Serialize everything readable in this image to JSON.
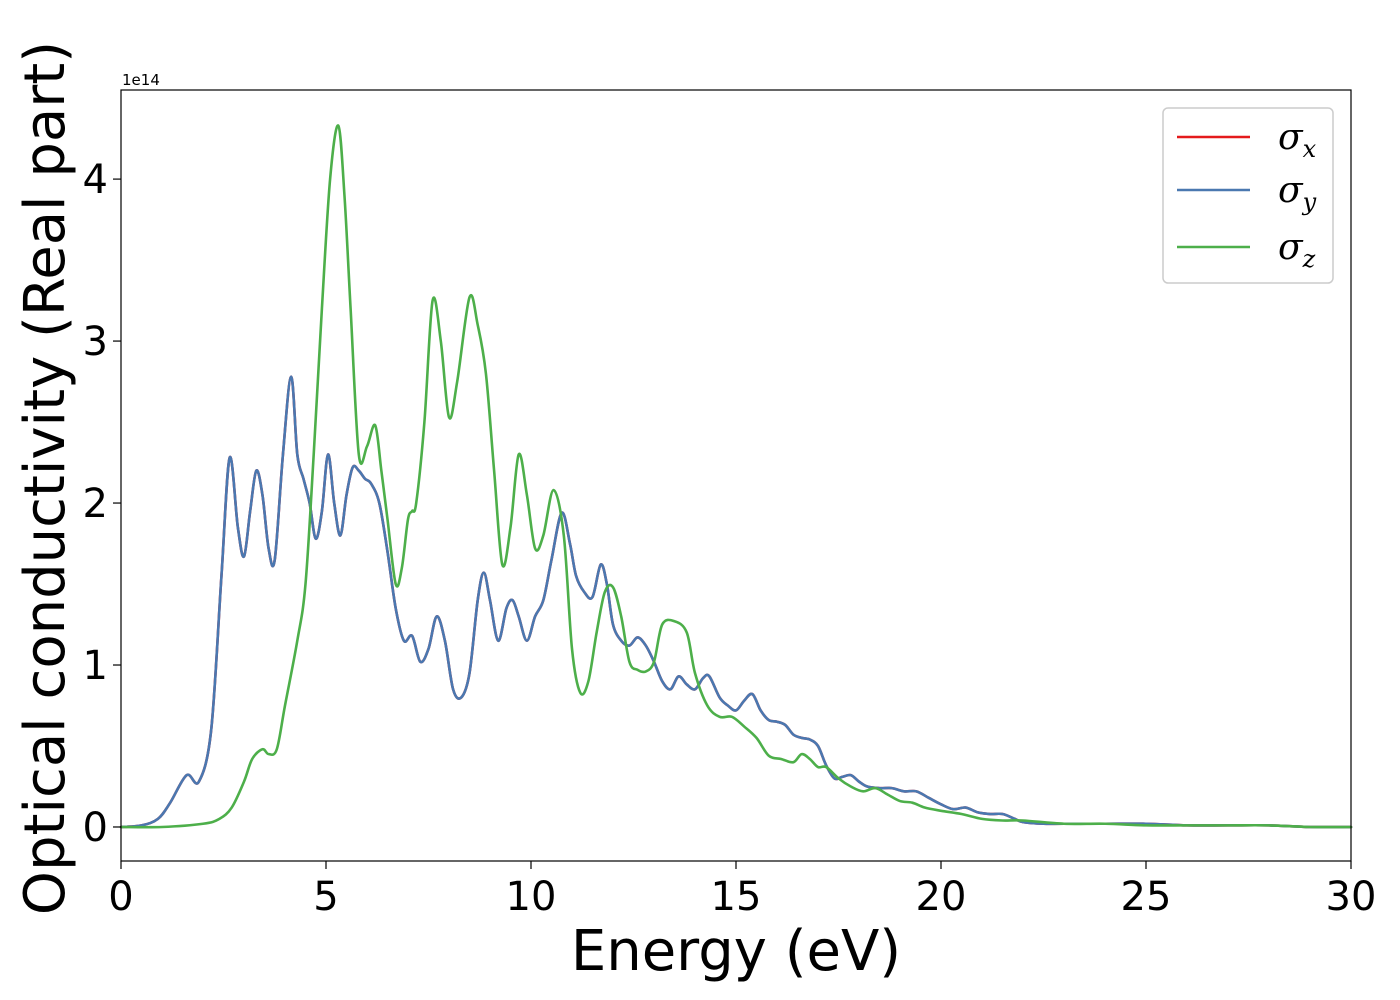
{
  "chart_data": {
    "type": "line",
    "xlabel": "Energy (eV)",
    "ylabel": "Optical conductivity (Real part)",
    "y_offset_text": "1e14",
    "xlim": [
      0,
      30
    ],
    "ylim": [
      -0.21,
      4.55
    ],
    "x_ticks": [
      0,
      5,
      10,
      15,
      20,
      25,
      30
    ],
    "x_tick_labels": [
      "0",
      "5",
      "10",
      "15",
      "20",
      "25",
      "30"
    ],
    "y_ticks": [
      0,
      1,
      2,
      3,
      4
    ],
    "y_tick_labels": [
      "0",
      "1",
      "2",
      "3",
      "4"
    ],
    "grid": false,
    "legend_position": "upper right",
    "series": [
      {
        "name": "σ_x",
        "legend_symbol": "σ",
        "legend_subscript": "x",
        "color": "#e41a1c",
        "x": [
          0,
          0.5,
          0.9,
          1.2,
          1.6,
          1.9,
          2.2,
          2.45,
          2.65,
          2.85,
          3.0,
          3.15,
          3.3,
          3.45,
          3.6,
          3.75,
          3.95,
          4.15,
          4.3,
          4.45,
          4.6,
          4.75,
          4.9,
          5.05,
          5.2,
          5.35,
          5.5,
          5.65,
          5.8,
          5.95,
          6.1,
          6.3,
          6.5,
          6.7,
          6.9,
          7.1,
          7.3,
          7.5,
          7.7,
          7.9,
          8.1,
          8.3,
          8.5,
          8.7,
          8.85,
          9.0,
          9.2,
          9.4,
          9.55,
          9.7,
          9.9,
          10.1,
          10.3,
          10.5,
          10.75,
          10.95,
          11.1,
          11.3,
          11.5,
          11.7,
          11.85,
          12.0,
          12.2,
          12.4,
          12.6,
          12.8,
          13.0,
          13.2,
          13.4,
          13.6,
          13.8,
          14.0,
          14.2,
          14.35,
          14.6,
          14.8,
          15.0,
          15.2,
          15.4,
          15.6,
          15.8,
          16.0,
          16.2,
          16.4,
          16.6,
          16.8,
          17.0,
          17.2,
          17.4,
          17.6,
          17.8,
          18.0,
          18.2,
          18.5,
          18.8,
          19.1,
          19.4,
          19.7,
          20.0,
          20.3,
          20.6,
          20.9,
          21.2,
          21.5,
          21.8,
          22.0,
          22.5,
          23.0,
          24.0,
          25.0,
          26.0,
          27.0,
          28.0,
          29.0,
          30.0
        ],
        "y": [
          0.0,
          0.01,
          0.05,
          0.15,
          0.32,
          0.28,
          0.6,
          1.55,
          2.28,
          1.85,
          1.67,
          1.95,
          2.2,
          2.05,
          1.72,
          1.65,
          2.3,
          2.78,
          2.3,
          2.15,
          2.0,
          1.78,
          1.95,
          2.3,
          2.0,
          1.8,
          2.05,
          2.22,
          2.2,
          2.15,
          2.12,
          2.0,
          1.7,
          1.35,
          1.15,
          1.18,
          1.02,
          1.1,
          1.3,
          1.15,
          0.85,
          0.8,
          0.95,
          1.4,
          1.57,
          1.4,
          1.15,
          1.35,
          1.4,
          1.3,
          1.15,
          1.3,
          1.4,
          1.65,
          1.94,
          1.75,
          1.55,
          1.45,
          1.42,
          1.62,
          1.5,
          1.25,
          1.15,
          1.12,
          1.17,
          1.12,
          1.02,
          0.9,
          0.85,
          0.93,
          0.88,
          0.85,
          0.92,
          0.93,
          0.8,
          0.75,
          0.72,
          0.78,
          0.82,
          0.72,
          0.66,
          0.65,
          0.63,
          0.57,
          0.55,
          0.54,
          0.5,
          0.38,
          0.3,
          0.31,
          0.32,
          0.28,
          0.25,
          0.24,
          0.24,
          0.22,
          0.22,
          0.18,
          0.14,
          0.11,
          0.12,
          0.09,
          0.08,
          0.08,
          0.05,
          0.03,
          0.02,
          0.02,
          0.02,
          0.02,
          0.01,
          0.01,
          0.01,
          0.0,
          0.0
        ]
      },
      {
        "name": "σ_y",
        "legend_symbol": "σ",
        "legend_subscript": "y",
        "color": "#4a78b0",
        "x": [
          0,
          0.5,
          0.9,
          1.2,
          1.6,
          1.9,
          2.2,
          2.45,
          2.65,
          2.85,
          3.0,
          3.15,
          3.3,
          3.45,
          3.6,
          3.75,
          3.95,
          4.15,
          4.3,
          4.45,
          4.6,
          4.75,
          4.9,
          5.05,
          5.2,
          5.35,
          5.5,
          5.65,
          5.8,
          5.95,
          6.1,
          6.3,
          6.5,
          6.7,
          6.9,
          7.1,
          7.3,
          7.5,
          7.7,
          7.9,
          8.1,
          8.3,
          8.5,
          8.7,
          8.85,
          9.0,
          9.2,
          9.4,
          9.55,
          9.7,
          9.9,
          10.1,
          10.3,
          10.5,
          10.75,
          10.95,
          11.1,
          11.3,
          11.5,
          11.7,
          11.85,
          12.0,
          12.2,
          12.4,
          12.6,
          12.8,
          13.0,
          13.2,
          13.4,
          13.6,
          13.8,
          14.0,
          14.2,
          14.35,
          14.6,
          14.8,
          15.0,
          15.2,
          15.4,
          15.6,
          15.8,
          16.0,
          16.2,
          16.4,
          16.6,
          16.8,
          17.0,
          17.2,
          17.4,
          17.6,
          17.8,
          18.0,
          18.2,
          18.5,
          18.8,
          19.1,
          19.4,
          19.7,
          20.0,
          20.3,
          20.6,
          20.9,
          21.2,
          21.5,
          21.8,
          22.0,
          22.5,
          23.0,
          24.0,
          25.0,
          26.0,
          27.0,
          28.0,
          29.0,
          30.0
        ],
        "y": [
          0.0,
          0.01,
          0.05,
          0.15,
          0.32,
          0.28,
          0.6,
          1.55,
          2.28,
          1.85,
          1.67,
          1.95,
          2.2,
          2.05,
          1.72,
          1.65,
          2.3,
          2.78,
          2.3,
          2.15,
          2.0,
          1.78,
          1.95,
          2.3,
          2.0,
          1.8,
          2.05,
          2.22,
          2.2,
          2.15,
          2.12,
          2.0,
          1.7,
          1.35,
          1.15,
          1.18,
          1.02,
          1.1,
          1.3,
          1.15,
          0.85,
          0.8,
          0.95,
          1.4,
          1.57,
          1.4,
          1.15,
          1.35,
          1.4,
          1.3,
          1.15,
          1.3,
          1.4,
          1.65,
          1.94,
          1.75,
          1.55,
          1.45,
          1.42,
          1.62,
          1.5,
          1.25,
          1.15,
          1.12,
          1.17,
          1.12,
          1.02,
          0.9,
          0.85,
          0.93,
          0.88,
          0.85,
          0.92,
          0.93,
          0.8,
          0.75,
          0.72,
          0.78,
          0.82,
          0.72,
          0.66,
          0.65,
          0.63,
          0.57,
          0.55,
          0.54,
          0.5,
          0.38,
          0.3,
          0.31,
          0.32,
          0.28,
          0.25,
          0.24,
          0.24,
          0.22,
          0.22,
          0.18,
          0.14,
          0.11,
          0.12,
          0.09,
          0.08,
          0.08,
          0.05,
          0.03,
          0.02,
          0.02,
          0.02,
          0.02,
          0.01,
          0.01,
          0.01,
          0.0,
          0.0
        ]
      },
      {
        "name": "σ_z",
        "legend_symbol": "σ",
        "legend_subscript": "z",
        "color": "#4daf4a",
        "x": [
          0,
          1.0,
          2.0,
          2.4,
          2.7,
          3.0,
          3.2,
          3.45,
          3.6,
          3.8,
          4.0,
          4.3,
          4.5,
          4.7,
          4.9,
          5.1,
          5.3,
          5.45,
          5.6,
          5.8,
          6.0,
          6.2,
          6.35,
          6.5,
          6.7,
          6.85,
          7.0,
          7.1,
          7.2,
          7.4,
          7.6,
          7.8,
          8.0,
          8.2,
          8.5,
          8.7,
          8.9,
          9.1,
          9.3,
          9.5,
          9.7,
          9.9,
          10.1,
          10.3,
          10.55,
          10.8,
          11.0,
          11.2,
          11.4,
          11.6,
          11.8,
          12.0,
          12.2,
          12.4,
          12.6,
          12.8,
          13.0,
          13.2,
          13.5,
          13.8,
          14.0,
          14.3,
          14.6,
          14.9,
          15.2,
          15.5,
          15.8,
          16.1,
          16.4,
          16.6,
          16.8,
          17.0,
          17.2,
          17.5,
          17.8,
          18.1,
          18.4,
          18.7,
          19.0,
          19.3,
          19.6,
          20.0,
          20.5,
          21.0,
          21.5,
          22.0,
          23.0,
          24.0,
          25.0,
          26.0,
          27.0,
          28.0,
          29.0,
          30.0
        ],
        "y": [
          0.0,
          0.0,
          0.02,
          0.05,
          0.12,
          0.28,
          0.42,
          0.48,
          0.45,
          0.48,
          0.75,
          1.15,
          1.5,
          2.3,
          3.2,
          4.0,
          4.33,
          3.9,
          3.2,
          2.3,
          2.35,
          2.48,
          2.2,
          1.9,
          1.5,
          1.6,
          1.9,
          1.95,
          2.0,
          2.5,
          3.25,
          3.0,
          2.53,
          2.75,
          3.27,
          3.1,
          2.8,
          2.2,
          1.62,
          1.85,
          2.3,
          2.05,
          1.72,
          1.8,
          2.08,
          1.8,
          1.1,
          0.83,
          0.9,
          1.2,
          1.45,
          1.48,
          1.3,
          1.02,
          0.97,
          0.96,
          1.02,
          1.25,
          1.27,
          1.2,
          0.95,
          0.75,
          0.68,
          0.68,
          0.62,
          0.55,
          0.44,
          0.42,
          0.4,
          0.45,
          0.42,
          0.37,
          0.37,
          0.3,
          0.25,
          0.22,
          0.24,
          0.2,
          0.16,
          0.15,
          0.12,
          0.1,
          0.08,
          0.05,
          0.04,
          0.04,
          0.02,
          0.02,
          0.01,
          0.01,
          0.01,
          0.01,
          0.0,
          0.0
        ]
      }
    ]
  }
}
